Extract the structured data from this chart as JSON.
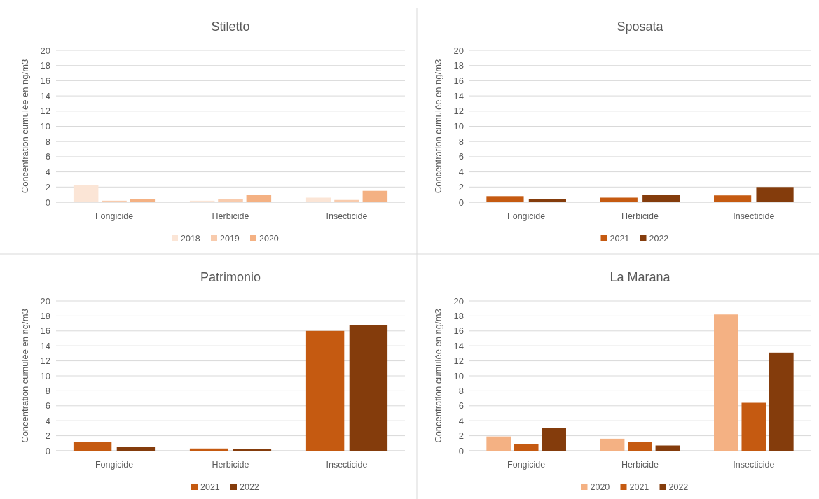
{
  "chart_data": [
    {
      "type": "bar",
      "title": "Stiletto",
      "ylabel": "Concentration cumulée en ng/m3",
      "categories": [
        "Fongicide",
        "Herbicide",
        "Insecticide"
      ],
      "series": [
        {
          "name": "2018",
          "color": "#fbe5d6",
          "values": [
            2.3,
            0.2,
            0.6
          ]
        },
        {
          "name": "2019",
          "color": "#f8cbad",
          "values": [
            0.2,
            0.4,
            0.3
          ]
        },
        {
          "name": "2020",
          "color": "#f4b183",
          "values": [
            0.4,
            1.0,
            1.5
          ]
        }
      ],
      "ylim": [
        0,
        20
      ],
      "yticks": [
        0,
        2,
        4,
        6,
        8,
        10,
        12,
        14,
        16,
        18,
        20
      ],
      "grid": "y",
      "legend": "bottom"
    },
    {
      "type": "bar",
      "title": "Sposata",
      "ylabel": "Concentration cumulée en ng/m3",
      "categories": [
        "Fongicide",
        "Herbicide",
        "Insecticide"
      ],
      "series": [
        {
          "name": "2021",
          "color": "#c55a11",
          "values": [
            0.8,
            0.6,
            0.9
          ]
        },
        {
          "name": "2022",
          "color": "#843c0c",
          "values": [
            0.4,
            1.0,
            2.0
          ]
        }
      ],
      "ylim": [
        0,
        20
      ],
      "yticks": [
        0,
        2,
        4,
        6,
        8,
        10,
        12,
        14,
        16,
        18,
        20
      ],
      "grid": "y",
      "legend": "bottom"
    },
    {
      "type": "bar",
      "title": "Patrimonio",
      "ylabel": "Concentration cumulée en ng/m3",
      "categories": [
        "Fongicide",
        "Herbicide",
        "Insecticide"
      ],
      "series": [
        {
          "name": "2021",
          "color": "#c55a11",
          "values": [
            1.2,
            0.3,
            16.0
          ]
        },
        {
          "name": "2022",
          "color": "#843c0c",
          "values": [
            0.5,
            0.2,
            16.8
          ]
        }
      ],
      "ylim": [
        0,
        20
      ],
      "yticks": [
        0,
        2,
        4,
        6,
        8,
        10,
        12,
        14,
        16,
        18,
        20
      ],
      "grid": "y",
      "legend": "bottom"
    },
    {
      "type": "bar",
      "title": "La Marana",
      "ylabel": "Concentration cumulée en ng/m3",
      "categories": [
        "Fongicide",
        "Herbicide",
        "Insecticide"
      ],
      "series": [
        {
          "name": "2020",
          "color": "#f4b183",
          "values": [
            1.9,
            1.6,
            18.2
          ]
        },
        {
          "name": "2021",
          "color": "#c55a11",
          "values": [
            0.9,
            1.2,
            6.4
          ]
        },
        {
          "name": "2022",
          "color": "#843c0c",
          "values": [
            3.0,
            0.7,
            13.1
          ]
        }
      ],
      "ylim": [
        0,
        20
      ],
      "yticks": [
        0,
        2,
        4,
        6,
        8,
        10,
        12,
        14,
        16,
        18,
        20
      ],
      "grid": "y",
      "legend": "bottom"
    }
  ]
}
